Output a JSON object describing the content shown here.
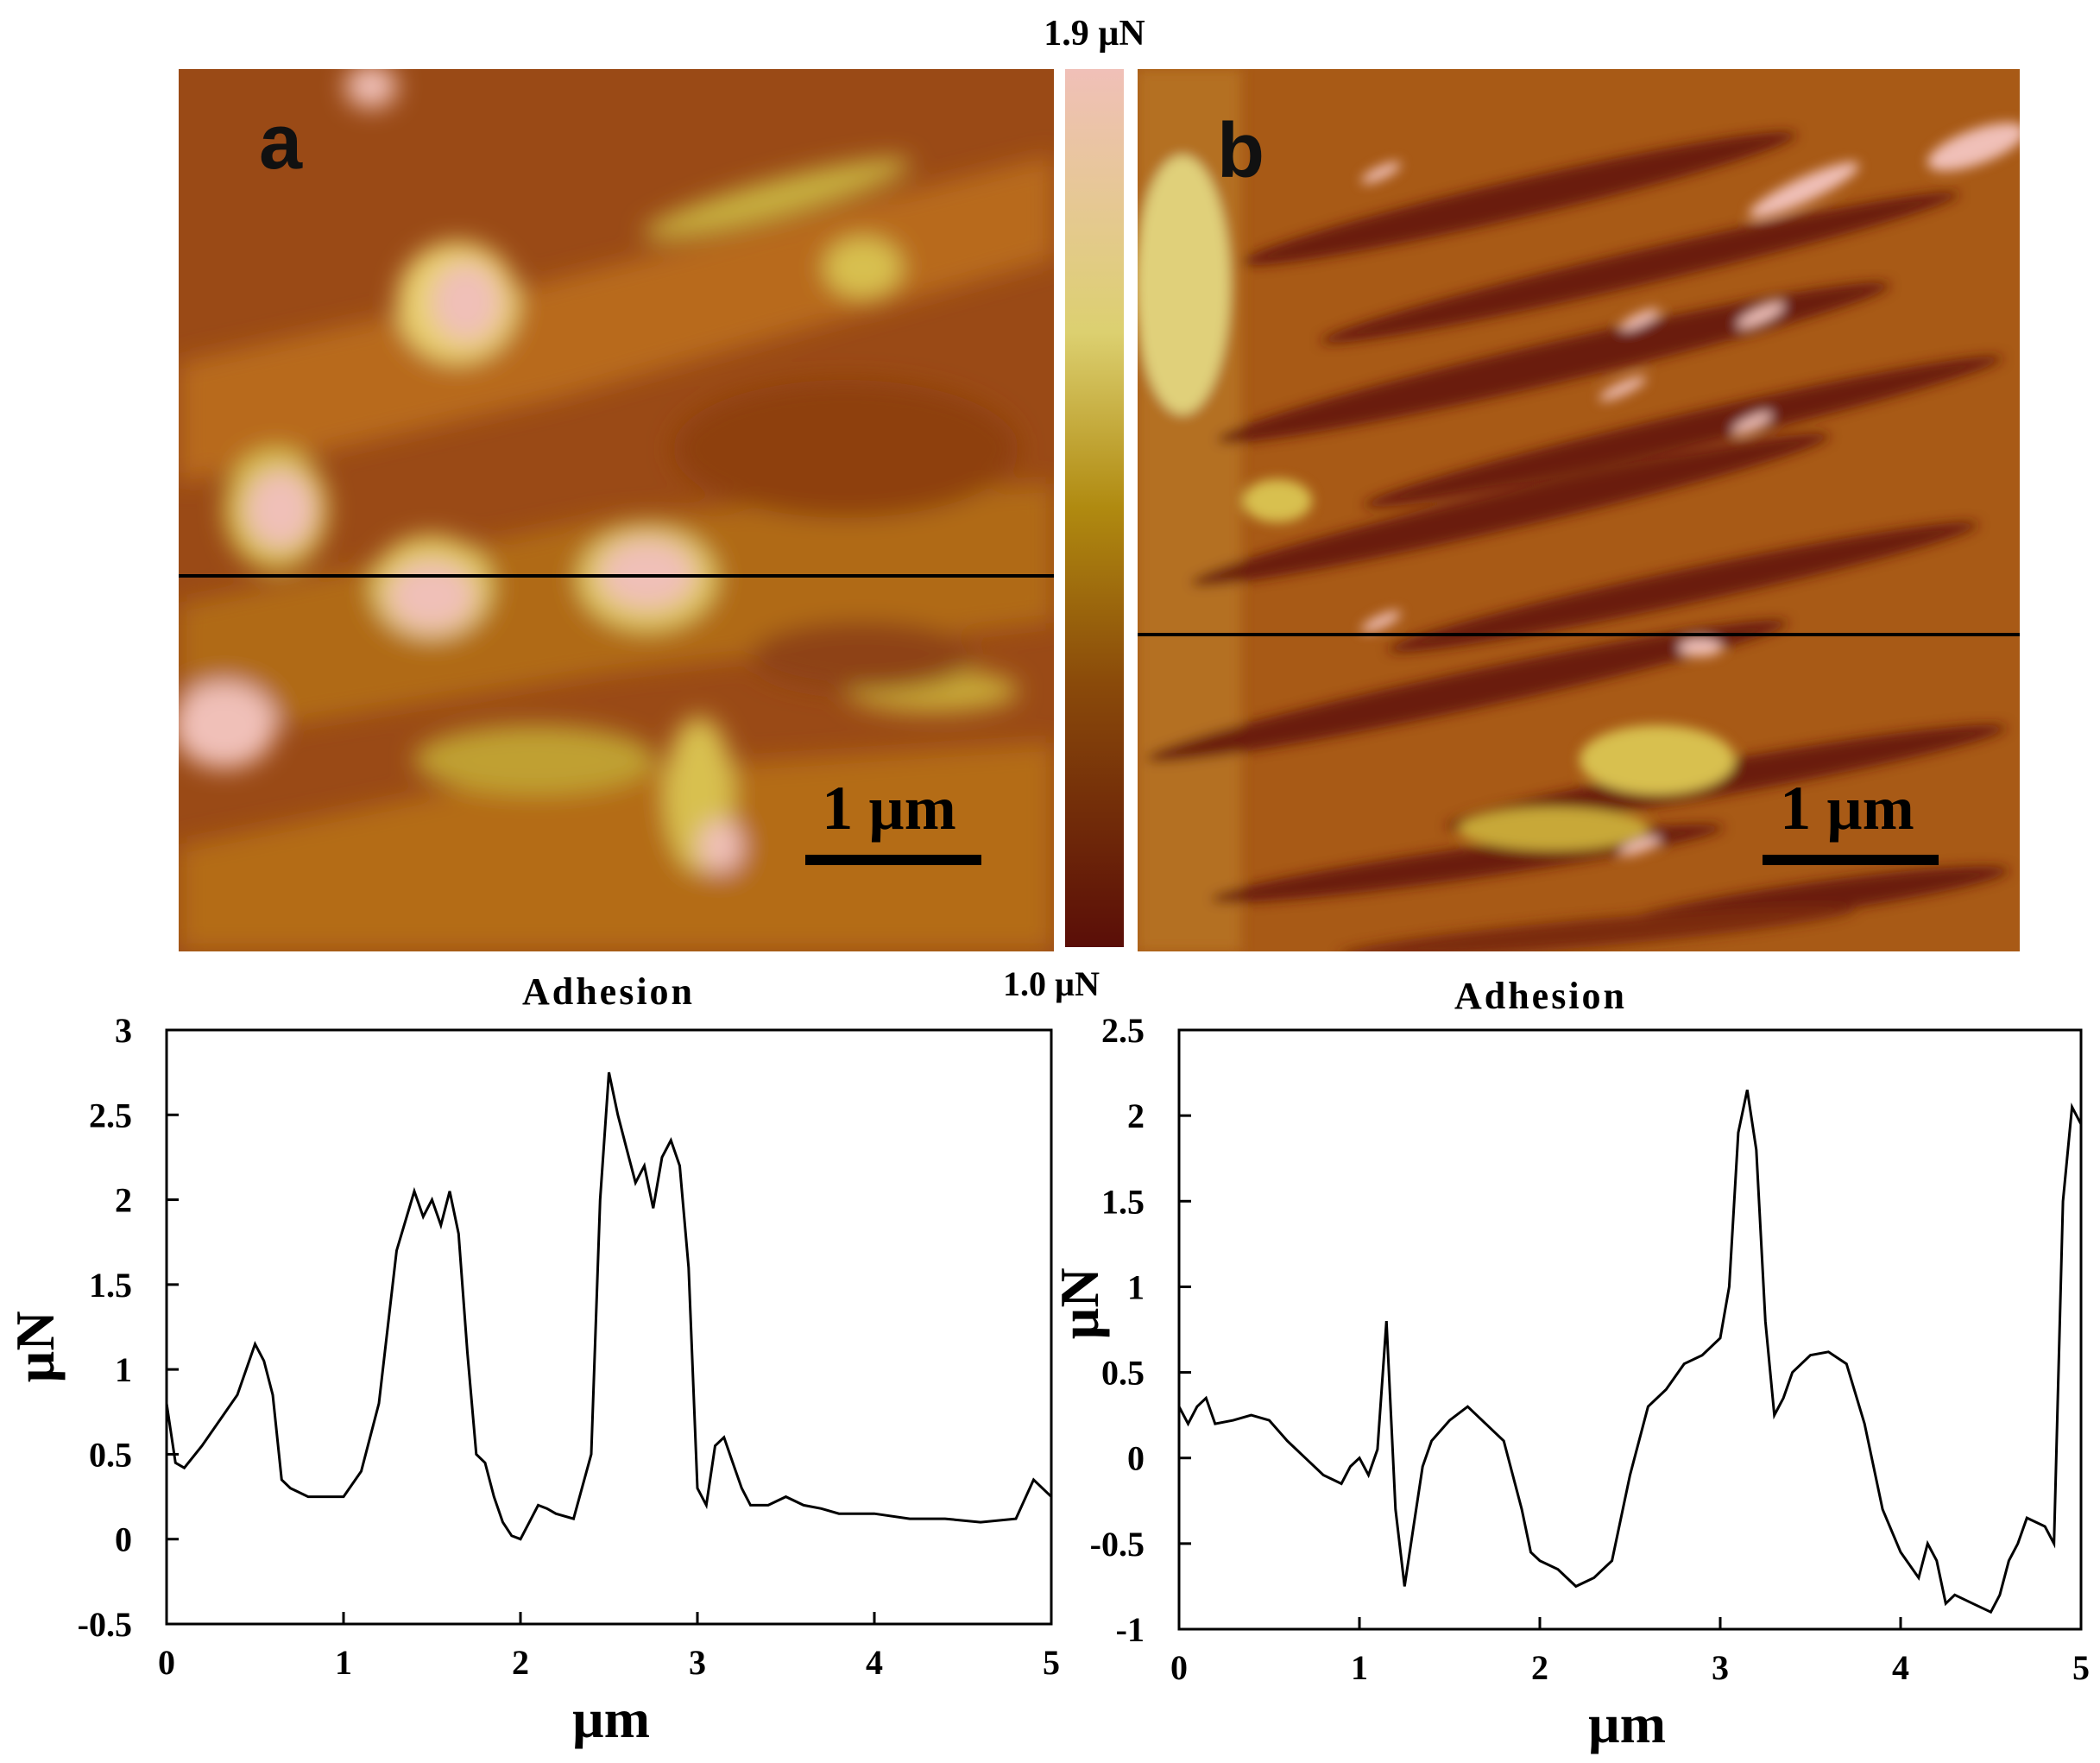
{
  "images": {
    "a": {
      "label": "a",
      "scale_bar": "1 µm"
    },
    "b": {
      "label": "b",
      "scale_bar": "1 µm"
    }
  },
  "colorbar": {
    "max_label": "1.9 µN",
    "min_label": "1.0 µN",
    "colors": [
      "#f0c0b8",
      "#dcd070",
      "#b08a10",
      "#8a4a0a",
      "#5a0e08"
    ]
  },
  "chart_data": [
    {
      "type": "line",
      "title": "Adhesion",
      "xlabel": "µm",
      "ylabel": "µN",
      "xlim": [
        0,
        5
      ],
      "ylim": [
        -0.5,
        3
      ],
      "xticks": [
        "0",
        "1",
        "2",
        "3",
        "4",
        "5"
      ],
      "yticks": [
        "-0.5",
        "0",
        "0.5",
        "1",
        "1.5",
        "2",
        "2.5",
        "3"
      ],
      "grid": false,
      "series": [
        {
          "x": [
            0,
            0.05,
            0.1,
            0.2,
            0.3,
            0.4,
            0.5,
            0.55,
            0.6,
            0.65,
            0.7,
            0.8,
            0.9,
            1.0,
            1.1,
            1.2,
            1.3,
            1.4,
            1.45,
            1.5,
            1.55,
            1.6,
            1.65,
            1.7,
            1.75,
            1.8,
            1.85,
            1.9,
            1.95,
            2.0,
            2.05,
            2.1,
            2.15,
            2.2,
            2.3,
            2.4,
            2.45,
            2.5,
            2.55,
            2.6,
            2.65,
            2.7,
            2.75,
            2.8,
            2.85,
            2.9,
            2.95,
            3.0,
            3.05,
            3.1,
            3.15,
            3.2,
            3.25,
            3.3,
            3.4,
            3.5,
            3.6,
            3.7,
            3.8,
            3.9,
            4.0,
            4.2,
            4.4,
            4.6,
            4.8,
            4.9,
            5.0
          ],
          "y": [
            0.8,
            0.45,
            0.42,
            0.55,
            0.7,
            0.85,
            1.15,
            1.05,
            0.85,
            0.35,
            0.3,
            0.25,
            0.25,
            0.25,
            0.4,
            0.8,
            1.7,
            2.05,
            1.9,
            2.0,
            1.85,
            2.05,
            1.8,
            1.1,
            0.5,
            0.45,
            0.25,
            0.1,
            0.02,
            0.0,
            0.1,
            0.2,
            0.18,
            0.15,
            0.12,
            0.5,
            2.0,
            2.75,
            2.5,
            2.3,
            2.1,
            2.2,
            1.95,
            2.25,
            2.35,
            2.2,
            1.6,
            0.3,
            0.2,
            0.55,
            0.6,
            0.45,
            0.3,
            0.2,
            0.2,
            0.25,
            0.2,
            0.18,
            0.15,
            0.15,
            0.15,
            0.12,
            0.12,
            0.1,
            0.12,
            0.35,
            0.25
          ]
        }
      ]
    },
    {
      "type": "line",
      "title": "Adhesion",
      "xlabel": "µm",
      "ylabel": "µN",
      "xlim": [
        0,
        5
      ],
      "ylim": [
        -1,
        2.5
      ],
      "xticks": [
        "0",
        "1",
        "2",
        "3",
        "4",
        "5"
      ],
      "yticks": [
        "-1",
        "-0.5",
        "0",
        "0.5",
        "1",
        "1.5",
        "2",
        "2.5"
      ],
      "grid": false,
      "series": [
        {
          "x": [
            0,
            0.05,
            0.1,
            0.15,
            0.2,
            0.3,
            0.4,
            0.5,
            0.6,
            0.7,
            0.8,
            0.9,
            0.95,
            1.0,
            1.05,
            1.1,
            1.15,
            1.2,
            1.25,
            1.3,
            1.35,
            1.4,
            1.5,
            1.6,
            1.7,
            1.8,
            1.9,
            1.95,
            2.0,
            2.1,
            2.2,
            2.3,
            2.4,
            2.5,
            2.6,
            2.7,
            2.8,
            2.9,
            3.0,
            3.05,
            3.1,
            3.15,
            3.2,
            3.25,
            3.3,
            3.35,
            3.4,
            3.5,
            3.6,
            3.7,
            3.8,
            3.9,
            4.0,
            4.1,
            4.15,
            4.2,
            4.25,
            4.3,
            4.4,
            4.5,
            4.55,
            4.6,
            4.65,
            4.7,
            4.8,
            4.85,
            4.9,
            4.95,
            5.0
          ],
          "y": [
            0.3,
            0.2,
            0.3,
            0.35,
            0.2,
            0.22,
            0.25,
            0.22,
            0.1,
            0.0,
            -0.1,
            -0.15,
            -0.05,
            0.0,
            -0.1,
            0.05,
            0.8,
            -0.3,
            -0.75,
            -0.4,
            -0.05,
            0.1,
            0.22,
            0.3,
            0.2,
            0.1,
            -0.3,
            -0.55,
            -0.6,
            -0.65,
            -0.75,
            -0.7,
            -0.6,
            -0.1,
            0.3,
            0.4,
            0.55,
            0.6,
            0.7,
            1.0,
            1.9,
            2.15,
            1.8,
            0.8,
            0.25,
            0.35,
            0.5,
            0.6,
            0.62,
            0.55,
            0.2,
            -0.3,
            -0.55,
            -0.7,
            -0.5,
            -0.6,
            -0.85,
            -0.8,
            -0.85,
            -0.9,
            -0.8,
            -0.6,
            -0.5,
            -0.35,
            -0.4,
            -0.5,
            1.5,
            2.05,
            1.95
          ]
        }
      ]
    }
  ]
}
